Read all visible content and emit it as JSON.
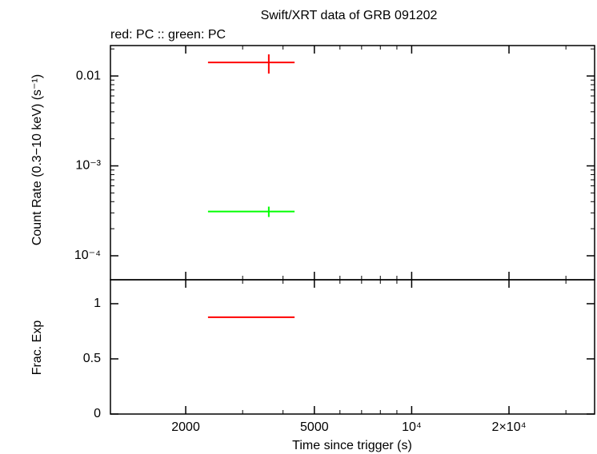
{
  "chart_data": [
    {
      "type": "errorbar",
      "title": "Swift/XRT data of GRB 091202",
      "subtitle": "red: PC  :: green: PC",
      "y_label": "Count Rate (0.3−10 keV) (s⁻¹)",
      "log_x": true,
      "log_y": true,
      "xlim": [
        1170,
        36800
      ],
      "ylim": [
        5.41e-05,
        0.0218
      ],
      "yticks": [
        0.01,
        {
          "value": 0.001,
          "label": "10⁻³"
        },
        {
          "value": 0.0001,
          "label": "10⁻⁴"
        }
      ],
      "yminorticks": [
        0.0002,
        0.0003,
        0.0004,
        0.0005,
        0.0006,
        0.0007,
        0.0008,
        0.0009,
        0.002,
        0.003,
        0.004,
        0.005,
        0.006,
        0.007,
        0.008,
        0.009,
        0.02
      ],
      "series": [
        {
          "color": "#ff0000",
          "x": [
            3614
          ],
          "x_lo": [
            2344
          ],
          "x_hi": [
            4343
          ],
          "values": [
            0.01416
          ],
          "y_lo": [
            0.01063
          ],
          "y_hi": [
            0.0174
          ]
        },
        {
          "color": "#00ff00",
          "x": [
            3614
          ],
          "x_lo": [
            2344
          ],
          "x_hi": [
            4343
          ],
          "values": [
            0.000311
          ],
          "y_lo": [
            0.00027
          ],
          "y_hi": [
            0.000352
          ]
        }
      ]
    },
    {
      "type": "errorbar",
      "x_label": "Time since trigger (s)",
      "y_label": "Frac. Exp",
      "log_x": true,
      "log_y": false,
      "xlim": [
        1170,
        36800
      ],
      "xticks": [
        2000,
        5000,
        {
          "value": 10000,
          "label": "10⁴"
        },
        {
          "value": 20000,
          "label": "2×10⁴"
        }
      ],
      "xminorticks": [
        3000,
        4000,
        6000,
        7000,
        8000,
        9000,
        30000
      ],
      "ylim": [
        0,
        1.217
      ],
      "yticks": [
        0,
        0.5,
        1
      ],
      "series": [
        {
          "color": "#ff0000",
          "x": [
            3614
          ],
          "x_lo": [
            2344
          ],
          "x_hi": [
            4343
          ],
          "values": [
            0.877
          ]
        }
      ]
    }
  ]
}
